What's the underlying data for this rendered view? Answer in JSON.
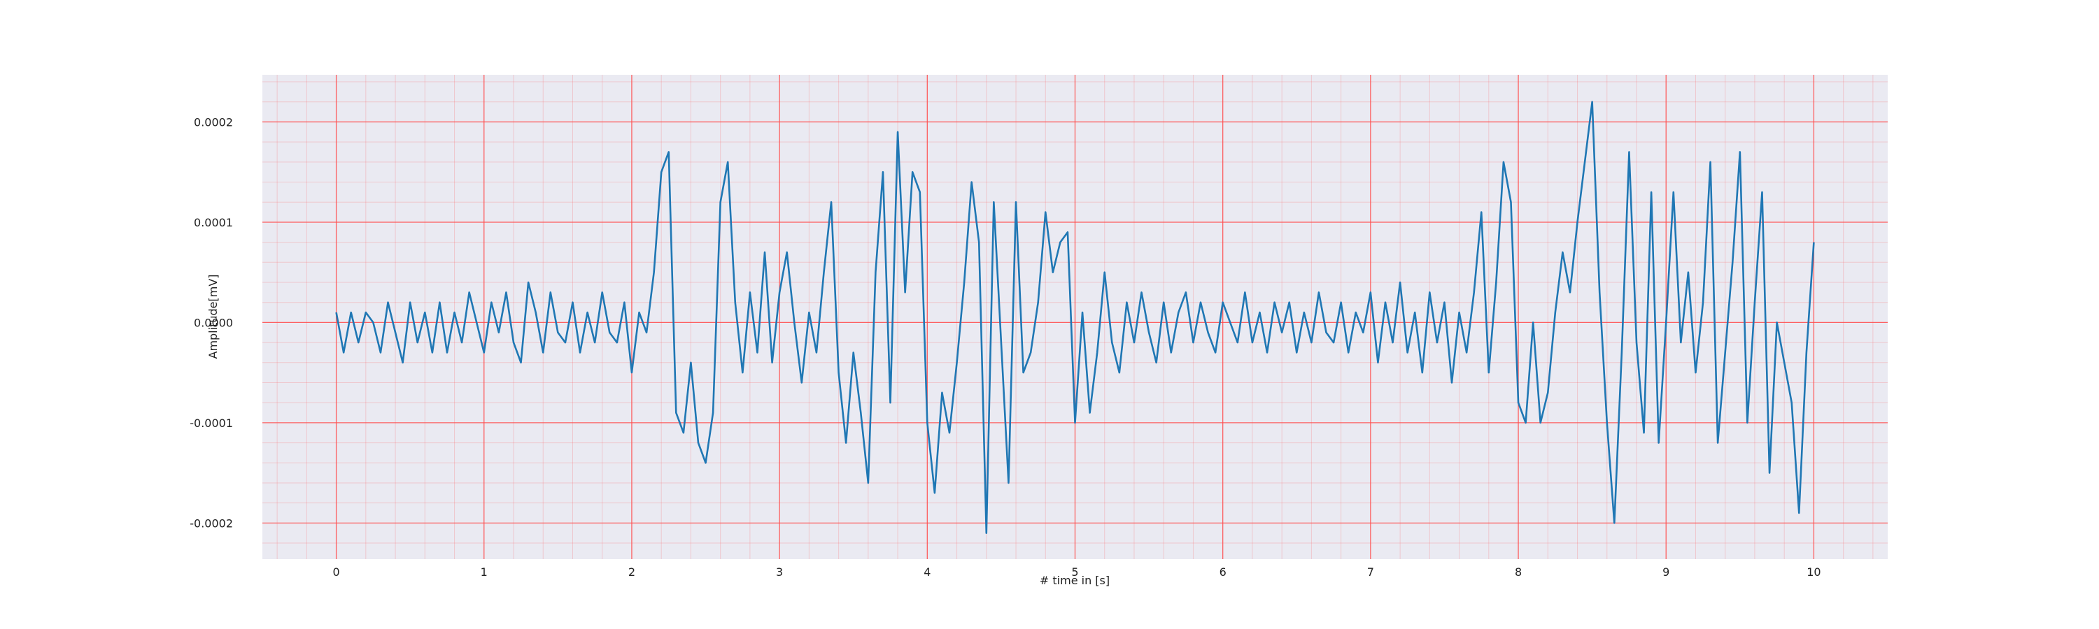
{
  "chart_data": {
    "type": "line",
    "xlabel": "# time in [s]",
    "ylabel": "Amplitude[mV]",
    "xlim": [
      -0.5,
      10.5
    ],
    "ylim": [
      -0.000236,
      0.000247
    ],
    "xticks": [
      0,
      1,
      2,
      3,
      4,
      5,
      6,
      7,
      8,
      9,
      10
    ],
    "yticks": [
      -0.0002,
      -0.0001,
      {
        "value": 0,
        "label": "0.0000"
      },
      0.0001,
      0.0002
    ],
    "grid": true,
    "minor_grid": true,
    "grid_color": "#ff4d4d",
    "background": "#eaeaf2",
    "x": [
      0,
      0.05,
      0.1,
      0.15,
      0.2,
      0.25,
      0.3,
      0.35,
      0.4,
      0.45,
      0.5,
      0.55,
      0.6,
      0.65,
      0.7,
      0.75,
      0.8,
      0.85,
      0.9,
      0.95,
      1,
      1.05,
      1.1,
      1.15,
      1.2,
      1.25,
      1.3,
      1.35,
      1.4,
      1.45,
      1.5,
      1.55,
      1.6,
      1.65,
      1.7,
      1.75,
      1.8,
      1.85,
      1.9,
      1.95,
      2,
      2.05,
      2.1,
      2.15,
      2.2,
      2.25,
      2.3,
      2.35,
      2.4,
      2.45,
      2.5,
      2.55,
      2.6,
      2.65,
      2.7,
      2.75,
      2.8,
      2.85,
      2.9,
      2.95,
      3,
      3.05,
      3.1,
      3.15,
      3.2,
      3.25,
      3.3,
      3.35,
      3.4,
      3.45,
      3.5,
      3.55,
      3.6,
      3.65,
      3.7,
      3.75,
      3.8,
      3.85,
      3.9,
      3.95,
      4,
      4.05,
      4.1,
      4.15,
      4.2,
      4.25,
      4.3,
      4.35,
      4.4,
      4.45,
      4.5,
      4.55,
      4.6,
      4.65,
      4.7,
      4.75,
      4.8,
      4.85,
      4.9,
      4.95,
      5,
      5.05,
      5.1,
      5.15,
      5.2,
      5.25,
      5.3,
      5.35,
      5.4,
      5.45,
      5.5,
      5.55,
      5.6,
      5.65,
      5.7,
      5.75,
      5.8,
      5.85,
      5.9,
      5.95,
      6,
      6.05,
      6.1,
      6.15,
      6.2,
      6.25,
      6.3,
      6.35,
      6.4,
      6.45,
      6.5,
      6.55,
      6.6,
      6.65,
      6.7,
      6.75,
      6.8,
      6.85,
      6.9,
      6.95,
      7,
      7.05,
      7.1,
      7.15,
      7.2,
      7.25,
      7.3,
      7.35,
      7.4,
      7.45,
      7.5,
      7.55,
      7.6,
      7.65,
      7.7,
      7.75,
      7.8,
      7.85,
      7.9,
      7.95,
      8,
      8.05,
      8.1,
      8.15,
      8.2,
      8.25,
      8.3,
      8.35,
      8.4,
      8.45,
      8.5,
      8.55,
      8.6,
      8.65,
      8.7,
      8.75,
      8.8,
      8.85,
      8.9,
      8.95,
      9,
      9.05,
      9.1,
      9.15,
      9.2,
      9.25,
      9.3,
      9.35,
      9.4,
      9.45,
      9.5,
      9.55,
      9.6,
      9.65,
      9.7,
      9.75,
      9.8,
      9.85,
      9.9,
      9.95,
      10
    ],
    "series": [
      {
        "color": "#1f77b4",
        "values": [
          1e-05,
          -3e-05,
          1e-05,
          -2e-05,
          1e-05,
          0,
          -3e-05,
          2e-05,
          -1e-05,
          -4e-05,
          2e-05,
          -2e-05,
          1e-05,
          -3e-05,
          2e-05,
          -3e-05,
          1e-05,
          -2e-05,
          3e-05,
          0,
          -3e-05,
          2e-05,
          -1e-05,
          3e-05,
          -2e-05,
          -4e-05,
          4e-05,
          1e-05,
          -3e-05,
          3e-05,
          -1e-05,
          -2e-05,
          2e-05,
          -3e-05,
          1e-05,
          -2e-05,
          3e-05,
          -1e-05,
          -2e-05,
          2e-05,
          -5e-05,
          1e-05,
          -1e-05,
          5e-05,
          0.00015,
          0.00017,
          -9e-05,
          -0.00011,
          -4e-05,
          -0.00012,
          -0.00014,
          -9e-05,
          0.00012,
          0.00016,
          2e-05,
          -5e-05,
          3e-05,
          -3e-05,
          7e-05,
          -4e-05,
          3e-05,
          7e-05,
          0,
          -6e-05,
          1e-05,
          -3e-05,
          5e-05,
          0.00012,
          -5e-05,
          -0.00012,
          -3e-05,
          -9e-05,
          -0.00016,
          5e-05,
          0.00015,
          -8e-05,
          0.00019,
          3e-05,
          0.00015,
          0.00013,
          -0.0001,
          -0.00017,
          -7e-05,
          -0.00011,
          -4e-05,
          4e-05,
          0.00014,
          8e-05,
          -0.00021,
          0.00012,
          -2e-05,
          -0.00016,
          0.00012,
          -5e-05,
          -3e-05,
          2e-05,
          0.00011,
          5e-05,
          8e-05,
          9e-05,
          -0.0001,
          1e-05,
          -9e-05,
          -3e-05,
          5e-05,
          -2e-05,
          -5e-05,
          2e-05,
          -2e-05,
          3e-05,
          -1e-05,
          -4e-05,
          2e-05,
          -3e-05,
          1e-05,
          3e-05,
          -2e-05,
          2e-05,
          -1e-05,
          -3e-05,
          2e-05,
          0,
          -2e-05,
          3e-05,
          -2e-05,
          1e-05,
          -3e-05,
          2e-05,
          -1e-05,
          2e-05,
          -3e-05,
          1e-05,
          -2e-05,
          3e-05,
          -1e-05,
          -2e-05,
          2e-05,
          -3e-05,
          1e-05,
          -1e-05,
          3e-05,
          -4e-05,
          2e-05,
          -2e-05,
          4e-05,
          -3e-05,
          1e-05,
          -5e-05,
          3e-05,
          -2e-05,
          2e-05,
          -6e-05,
          1e-05,
          -3e-05,
          3e-05,
          0.00011,
          -5e-05,
          4e-05,
          0.00016,
          0.00012,
          -8e-05,
          -0.0001,
          0,
          -0.0001,
          -7e-05,
          1e-05,
          7e-05,
          3e-05,
          0.0001,
          0.00016,
          0.00022,
          3e-05,
          -0.0001,
          -0.0002,
          -3e-05,
          0.00017,
          -2e-05,
          -0.00011,
          0.00013,
          -0.00012,
          0,
          0.00013,
          -2e-05,
          5e-05,
          -5e-05,
          2e-05,
          0.00016,
          -0.00012,
          -3e-05,
          6e-05,
          0.00017,
          -0.0001,
          2e-05,
          0.00013,
          -0.00015,
          0,
          -4e-05,
          -8e-05,
          -0.00019,
          -3e-05,
          8e-05
        ]
      }
    ]
  }
}
